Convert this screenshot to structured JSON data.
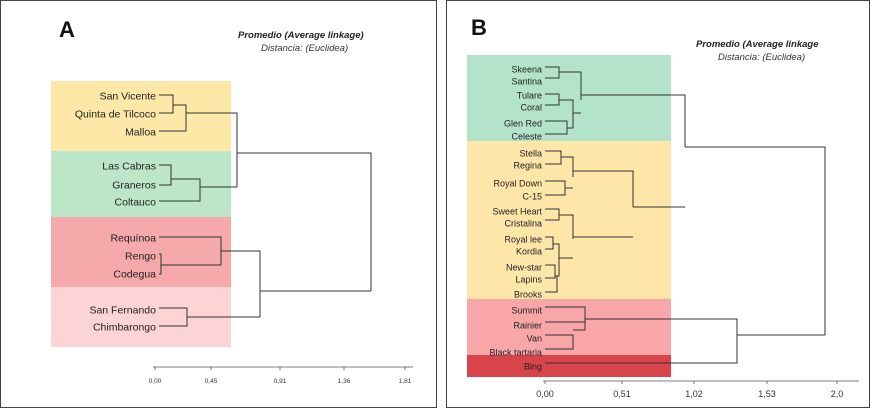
{
  "panels": [
    {
      "letter": "A",
      "title": "Promedio (Average linkage)",
      "subtitle": "Distancia: (Euclidea)",
      "axis_ticks": [
        "0,00",
        "0,45",
        "0,91",
        "1,36",
        "1,81"
      ],
      "groups": [
        {
          "color": "#fde8a8",
          "labels": [
            "San Vicente",
            "Quinta de Tilcoco",
            "Malloa"
          ]
        },
        {
          "color": "#bde6c9",
          "labels": [
            "Las Cabras",
            "Graneros",
            "Coltauco"
          ]
        },
        {
          "color": "#f6a9ab",
          "labels": [
            "Requínoa",
            "Rengo",
            "Codegua"
          ]
        },
        {
          "color": "#fcd4d6",
          "labels": [
            "San Fernando",
            "Chimbarongo"
          ]
        }
      ]
    },
    {
      "letter": "B",
      "title": "Promedio (Average linkage",
      "subtitle": "Distancia: (Euclidea)",
      "axis_ticks": [
        "0,00",
        "0,51",
        "1,02",
        "1,53",
        "2,0"
      ],
      "groups": [
        {
          "color": "#b4e3cb",
          "labels": [
            "Skeena",
            "Santina",
            "Tulare",
            "Coral",
            "Glen Red",
            "Celeste"
          ]
        },
        {
          "color": "#fde6a8",
          "labels": [
            "Stella",
            "Regina",
            "Royal Down",
            "C-15",
            "Sweet Heart",
            "Cristalina",
            "Royal lee",
            "Kordia",
            "New-star",
            "Lapins",
            "Brooks"
          ]
        },
        {
          "color": "#f8a6a8",
          "labels": [
            "Summit",
            "Rainier",
            "Van",
            "Black tartaria"
          ]
        },
        {
          "color": "#d9444a",
          "labels": [
            "Bing"
          ]
        }
      ]
    }
  ]
}
